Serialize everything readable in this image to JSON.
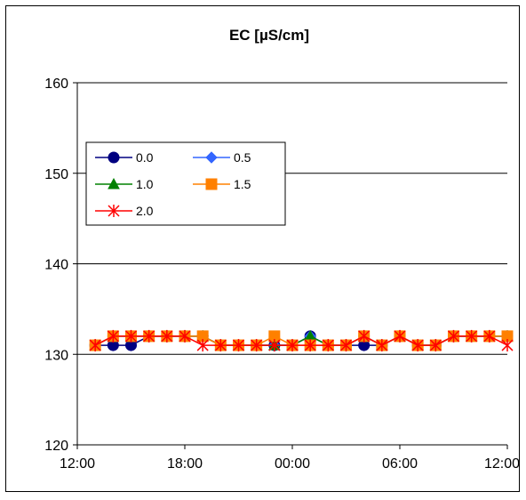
{
  "chart_data": {
    "type": "line",
    "title": "EC [µS/cm]",
    "xlabel": "",
    "ylabel": "",
    "ylim": [
      120,
      160
    ],
    "yticks": [
      120,
      130,
      140,
      150,
      160
    ],
    "xlim": [
      0,
      24
    ],
    "xticks": [
      0,
      6,
      12,
      18,
      24
    ],
    "xtick_labels": [
      "12:00",
      "18:00",
      "00:00",
      "06:00",
      "12:00"
    ],
    "grid": "horizontal",
    "legend_position": "upper-left",
    "x": [
      1,
      2,
      3,
      4,
      5,
      6,
      7,
      8,
      9,
      10,
      11,
      12,
      13,
      14,
      15,
      16,
      17,
      18,
      19,
      20,
      21,
      22,
      23,
      24
    ],
    "series": [
      {
        "name": "0.0",
        "color": "#000080",
        "marker": "circle",
        "values": [
          131,
          131,
          131,
          132,
          132,
          132,
          132,
          131,
          131,
          131,
          131,
          131,
          132,
          131,
          131,
          131,
          131,
          132,
          131,
          131,
          132,
          132,
          132,
          132
        ]
      },
      {
        "name": "0.5",
        "color": "#3366FF",
        "marker": "diamond",
        "values": [
          131,
          132,
          132,
          132,
          132,
          132,
          132,
          131,
          131,
          131,
          131,
          131,
          132,
          131,
          131,
          132,
          131,
          132,
          131,
          131,
          132,
          132,
          132,
          132
        ]
      },
      {
        "name": "1.0",
        "color": "#008000",
        "marker": "triangle",
        "values": [
          131,
          132,
          132,
          132,
          132,
          132,
          132,
          131,
          131,
          131,
          131,
          131,
          132,
          131,
          131,
          132,
          131,
          132,
          131,
          131,
          132,
          132,
          132,
          132
        ]
      },
      {
        "name": "1.5",
        "color": "#FF8000",
        "marker": "square",
        "values": [
          131,
          132,
          132,
          132,
          132,
          132,
          132,
          131,
          131,
          131,
          132,
          131,
          131,
          131,
          131,
          132,
          131,
          132,
          131,
          131,
          132,
          132,
          132,
          132
        ]
      },
      {
        "name": "2.0",
        "color": "#FF0000",
        "marker": "asterisk",
        "values": [
          131,
          132,
          132,
          132,
          132,
          132,
          131,
          131,
          131,
          131,
          131,
          131,
          131,
          131,
          131,
          132,
          131,
          132,
          131,
          131,
          132,
          132,
          132,
          131
        ]
      }
    ]
  }
}
